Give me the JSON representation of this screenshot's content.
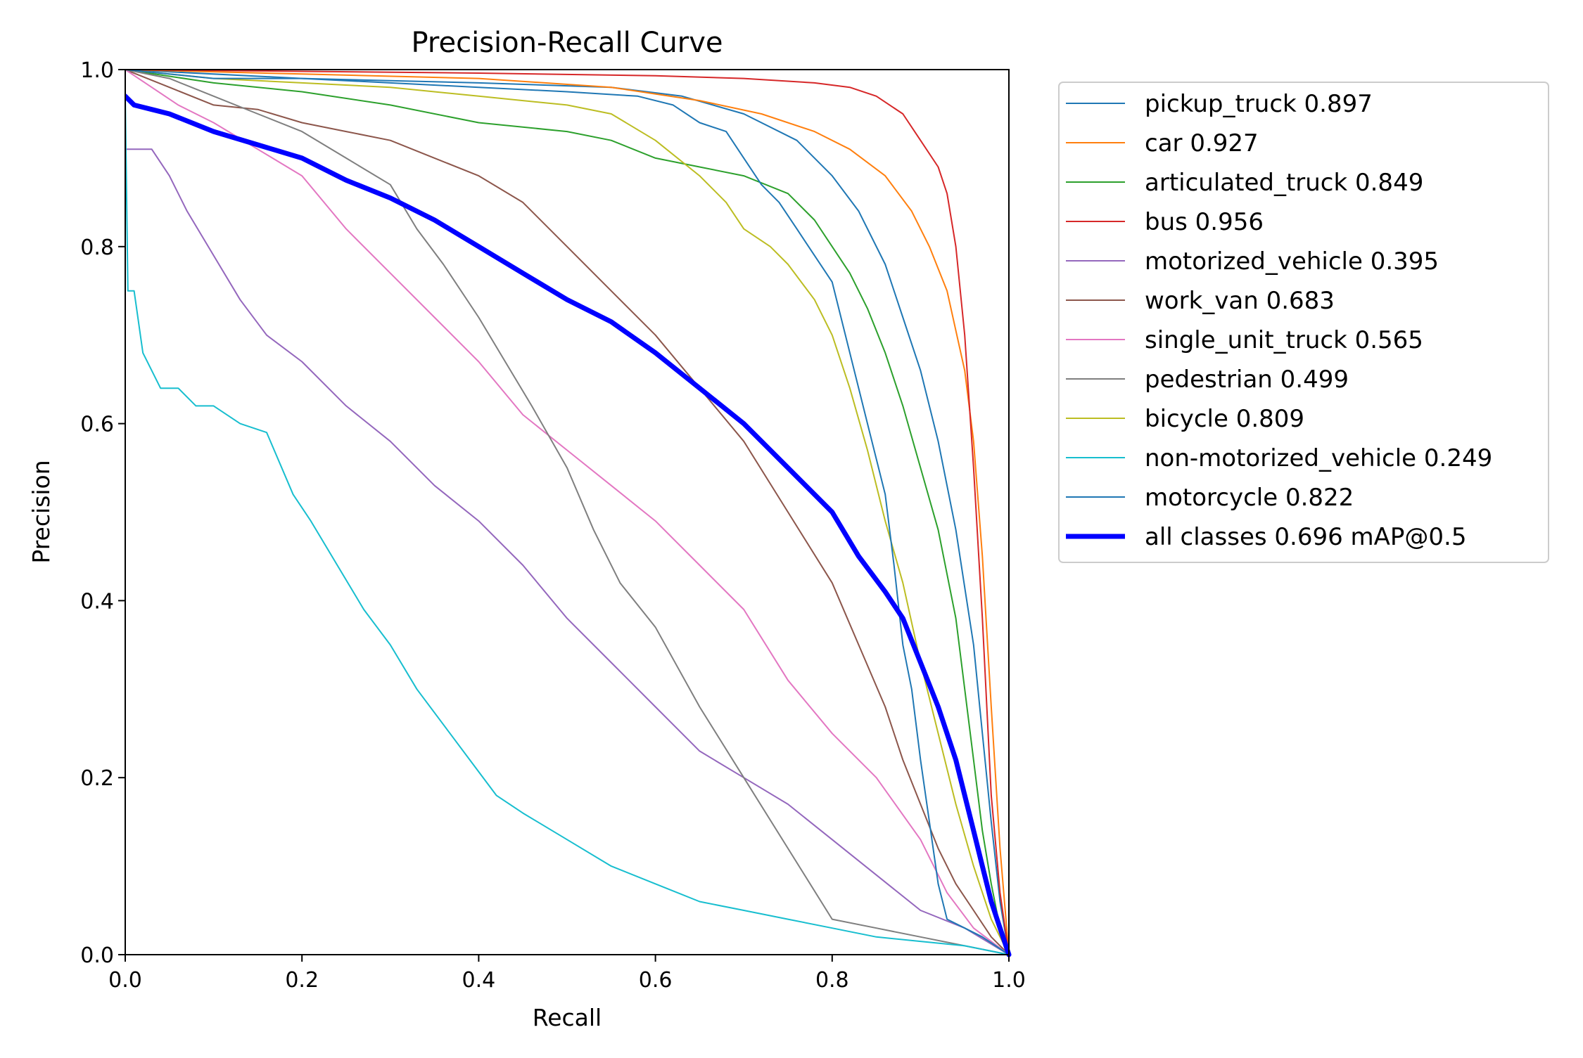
{
  "chart_data": {
    "type": "line",
    "title": "Precision-Recall Curve",
    "xlabel": "Recall",
    "ylabel": "Precision",
    "xlim": [
      0,
      1
    ],
    "ylim": [
      0,
      1
    ],
    "xticks": [
      "0.0",
      "0.2",
      "0.4",
      "0.6",
      "0.8",
      "1.0"
    ],
    "yticks": [
      "0.0",
      "0.2",
      "0.4",
      "0.6",
      "0.8",
      "1.0"
    ],
    "grid": false,
    "legend_position": "outside-right",
    "series": [
      {
        "name": "pickup_truck 0.897",
        "color": "#1f77b4",
        "width": 2,
        "x": [
          0,
          0.2,
          0.4,
          0.55,
          0.63,
          0.7,
          0.76,
          0.8,
          0.83,
          0.86,
          0.88,
          0.9,
          0.92,
          0.94,
          0.96,
          0.97,
          0.98,
          0.99,
          1.0
        ],
        "y": [
          1.0,
          0.99,
          0.985,
          0.98,
          0.97,
          0.95,
          0.92,
          0.88,
          0.84,
          0.78,
          0.72,
          0.66,
          0.58,
          0.48,
          0.35,
          0.25,
          0.15,
          0.06,
          0.0
        ]
      },
      {
        "name": "car 0.927",
        "color": "#ff7f0e",
        "width": 2,
        "x": [
          0,
          0.2,
          0.4,
          0.55,
          0.65,
          0.72,
          0.78,
          0.82,
          0.86,
          0.89,
          0.91,
          0.93,
          0.95,
          0.96,
          0.97,
          0.98,
          0.99,
          1.0
        ],
        "y": [
          1.0,
          0.995,
          0.99,
          0.98,
          0.965,
          0.95,
          0.93,
          0.91,
          0.88,
          0.84,
          0.8,
          0.75,
          0.66,
          0.58,
          0.45,
          0.28,
          0.12,
          0.0
        ]
      },
      {
        "name": "articulated_truck 0.849",
        "color": "#2ca02c",
        "width": 2,
        "x": [
          0,
          0.1,
          0.2,
          0.3,
          0.4,
          0.5,
          0.55,
          0.6,
          0.65,
          0.7,
          0.75,
          0.78,
          0.8,
          0.82,
          0.84,
          0.86,
          0.88,
          0.9,
          0.92,
          0.94,
          0.95,
          0.96,
          0.97,
          0.98,
          0.99,
          1.0
        ],
        "y": [
          1.0,
          0.985,
          0.975,
          0.96,
          0.94,
          0.93,
          0.92,
          0.9,
          0.89,
          0.88,
          0.86,
          0.83,
          0.8,
          0.77,
          0.73,
          0.68,
          0.62,
          0.55,
          0.48,
          0.38,
          0.3,
          0.22,
          0.14,
          0.08,
          0.03,
          0.0
        ]
      },
      {
        "name": "bus 0.956",
        "color": "#d62728",
        "width": 2,
        "x": [
          0,
          0.2,
          0.4,
          0.6,
          0.7,
          0.78,
          0.82,
          0.85,
          0.88,
          0.9,
          0.92,
          0.93,
          0.94,
          0.95,
          0.96,
          0.97,
          0.98,
          0.99,
          1.0
        ],
        "y": [
          1.0,
          0.998,
          0.996,
          0.993,
          0.99,
          0.985,
          0.98,
          0.97,
          0.95,
          0.92,
          0.89,
          0.86,
          0.8,
          0.7,
          0.55,
          0.38,
          0.18,
          0.07,
          0.0
        ]
      },
      {
        "name": "motorized_vehicle 0.395",
        "color": "#9467bd",
        "width": 2,
        "x": [
          0,
          0.03,
          0.05,
          0.07,
          0.1,
          0.13,
          0.16,
          0.2,
          0.25,
          0.3,
          0.35,
          0.4,
          0.45,
          0.5,
          0.55,
          0.6,
          0.65,
          0.7,
          0.75,
          0.8,
          0.85,
          0.9,
          0.95,
          1.0
        ],
        "y": [
          0.91,
          0.91,
          0.88,
          0.84,
          0.79,
          0.74,
          0.7,
          0.67,
          0.62,
          0.58,
          0.53,
          0.49,
          0.44,
          0.38,
          0.33,
          0.28,
          0.23,
          0.2,
          0.17,
          0.13,
          0.09,
          0.05,
          0.03,
          0.0
        ]
      },
      {
        "name": "work_van 0.683",
        "color": "#8c564b",
        "width": 2,
        "x": [
          0,
          0.05,
          0.1,
          0.15,
          0.2,
          0.25,
          0.3,
          0.35,
          0.4,
          0.45,
          0.5,
          0.55,
          0.6,
          0.65,
          0.7,
          0.75,
          0.8,
          0.83,
          0.86,
          0.88,
          0.9,
          0.92,
          0.94,
          0.96,
          0.98,
          1.0
        ],
        "y": [
          1.0,
          0.98,
          0.96,
          0.955,
          0.94,
          0.93,
          0.92,
          0.9,
          0.88,
          0.85,
          0.8,
          0.75,
          0.7,
          0.64,
          0.58,
          0.5,
          0.42,
          0.35,
          0.28,
          0.22,
          0.17,
          0.12,
          0.08,
          0.05,
          0.02,
          0.0
        ]
      },
      {
        "name": "single_unit_truck 0.565",
        "color": "#e377c2",
        "width": 2,
        "x": [
          0,
          0.03,
          0.06,
          0.1,
          0.15,
          0.2,
          0.25,
          0.3,
          0.35,
          0.4,
          0.45,
          0.5,
          0.55,
          0.6,
          0.65,
          0.7,
          0.75,
          0.8,
          0.85,
          0.9,
          0.93,
          0.96,
          1.0
        ],
        "y": [
          1.0,
          0.98,
          0.96,
          0.94,
          0.91,
          0.88,
          0.82,
          0.77,
          0.72,
          0.67,
          0.61,
          0.57,
          0.53,
          0.49,
          0.44,
          0.39,
          0.31,
          0.25,
          0.2,
          0.13,
          0.07,
          0.03,
          0.0
        ]
      },
      {
        "name": "pedestrian 0.499",
        "color": "#7f7f7f",
        "width": 2,
        "x": [
          0,
          0.05,
          0.1,
          0.15,
          0.2,
          0.25,
          0.3,
          0.33,
          0.36,
          0.4,
          0.43,
          0.46,
          0.5,
          0.53,
          0.56,
          0.6,
          0.65,
          0.7,
          0.75,
          0.8,
          0.85,
          0.9,
          0.95,
          1.0
        ],
        "y": [
          1.0,
          0.99,
          0.97,
          0.95,
          0.93,
          0.9,
          0.87,
          0.82,
          0.78,
          0.72,
          0.67,
          0.62,
          0.55,
          0.48,
          0.42,
          0.37,
          0.28,
          0.2,
          0.12,
          0.04,
          0.03,
          0.02,
          0.01,
          0.0
        ]
      },
      {
        "name": "bicycle 0.809",
        "color": "#bcbd22",
        "width": 2,
        "x": [
          0,
          0.1,
          0.2,
          0.3,
          0.4,
          0.5,
          0.55,
          0.6,
          0.65,
          0.68,
          0.7,
          0.73,
          0.75,
          0.78,
          0.8,
          0.82,
          0.84,
          0.86,
          0.88,
          0.9,
          0.92,
          0.94,
          0.96,
          0.98,
          1.0
        ],
        "y": [
          1.0,
          0.99,
          0.985,
          0.98,
          0.97,
          0.96,
          0.95,
          0.92,
          0.88,
          0.85,
          0.82,
          0.8,
          0.78,
          0.74,
          0.7,
          0.64,
          0.57,
          0.49,
          0.42,
          0.33,
          0.25,
          0.17,
          0.1,
          0.04,
          0.0
        ]
      },
      {
        "name": "non-motorized_vehicle 0.249",
        "color": "#17becf",
        "width": 2,
        "x": [
          0,
          0.003,
          0.01,
          0.02,
          0.04,
          0.06,
          0.08,
          0.1,
          0.13,
          0.16,
          0.19,
          0.21,
          0.24,
          0.27,
          0.3,
          0.33,
          0.36,
          0.39,
          0.42,
          0.45,
          0.5,
          0.55,
          0.6,
          0.65,
          0.7,
          0.75,
          0.8,
          0.85,
          0.9,
          0.95,
          1.0
        ],
        "y": [
          0.97,
          0.75,
          0.75,
          0.68,
          0.64,
          0.64,
          0.62,
          0.62,
          0.6,
          0.59,
          0.52,
          0.49,
          0.44,
          0.39,
          0.35,
          0.3,
          0.26,
          0.22,
          0.18,
          0.16,
          0.13,
          0.1,
          0.08,
          0.06,
          0.05,
          0.04,
          0.03,
          0.02,
          0.015,
          0.01,
          0.0
        ]
      },
      {
        "name": "motorcycle 0.822",
        "color": "#1f77b4",
        "width": 2,
        "x": [
          0,
          0.1,
          0.2,
          0.3,
          0.4,
          0.5,
          0.58,
          0.62,
          0.65,
          0.68,
          0.7,
          0.72,
          0.74,
          0.76,
          0.78,
          0.8,
          0.82,
          0.84,
          0.85,
          0.86,
          0.87,
          0.88,
          0.89,
          0.9,
          0.91,
          0.92,
          0.93,
          0.95,
          0.97,
          1.0
        ],
        "y": [
          1.0,
          0.99,
          0.99,
          0.985,
          0.98,
          0.975,
          0.97,
          0.96,
          0.94,
          0.93,
          0.9,
          0.87,
          0.85,
          0.82,
          0.79,
          0.76,
          0.68,
          0.6,
          0.56,
          0.52,
          0.44,
          0.35,
          0.3,
          0.22,
          0.15,
          0.08,
          0.04,
          0.03,
          0.02,
          0.0
        ]
      },
      {
        "name": "all classes 0.696 mAP@0.5",
        "color": "#0000ff",
        "width": 7,
        "x": [
          0,
          0.01,
          0.03,
          0.05,
          0.1,
          0.15,
          0.2,
          0.25,
          0.3,
          0.35,
          0.4,
          0.45,
          0.5,
          0.55,
          0.6,
          0.65,
          0.7,
          0.75,
          0.8,
          0.83,
          0.86,
          0.88,
          0.9,
          0.92,
          0.94,
          0.96,
          0.97,
          0.98,
          0.99,
          1.0
        ],
        "y": [
          0.97,
          0.96,
          0.955,
          0.95,
          0.93,
          0.915,
          0.9,
          0.875,
          0.855,
          0.83,
          0.8,
          0.77,
          0.74,
          0.715,
          0.68,
          0.64,
          0.6,
          0.55,
          0.5,
          0.45,
          0.41,
          0.38,
          0.33,
          0.28,
          0.22,
          0.14,
          0.1,
          0.06,
          0.03,
          0.0
        ]
      }
    ]
  }
}
